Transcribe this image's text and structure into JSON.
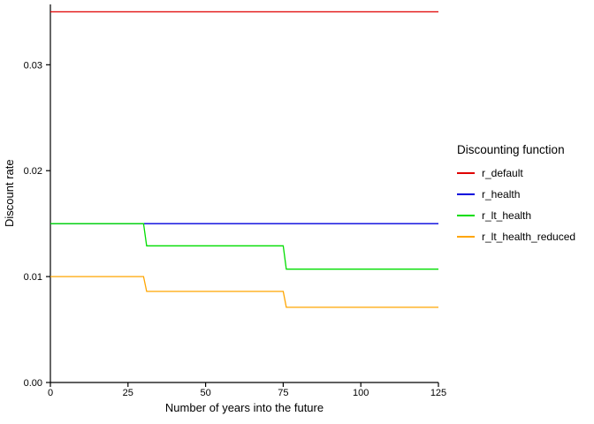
{
  "chart_data": {
    "type": "line",
    "subtype": "step",
    "title": "",
    "xlabel": "Number of years into the future",
    "ylabel": "Discount rate",
    "xlim": [
      0,
      125
    ],
    "ylim": [
      0,
      0.0357
    ],
    "x_ticks": [
      0,
      25,
      50,
      75,
      100,
      125
    ],
    "x_tick_labels": [
      "0",
      "25",
      "50",
      "75",
      "100",
      "125"
    ],
    "y_ticks": [
      0,
      0.01,
      0.02,
      0.03
    ],
    "y_tick_labels": [
      "0.00",
      "0.01",
      "0.02",
      "0.03"
    ],
    "grid": false,
    "legend_position": "right",
    "legend_title": "Discounting function",
    "axis_color": "#000000",
    "background_color": "#ffffff",
    "series": [
      {
        "name": "r_default",
        "color": "#e00000",
        "points": [
          [
            0,
            0.035
          ],
          [
            125,
            0.035
          ]
        ]
      },
      {
        "name": "r_health",
        "color": "#0000dd",
        "points": [
          [
            0,
            0.015
          ],
          [
            125,
            0.015
          ]
        ]
      },
      {
        "name": "r_lt_health",
        "color": "#00dd00",
        "points": [
          [
            0,
            0.015
          ],
          [
            30,
            0.015
          ],
          [
            31,
            0.0129
          ],
          [
            75,
            0.0129
          ],
          [
            76,
            0.0107
          ],
          [
            125,
            0.0107
          ]
        ]
      },
      {
        "name": "r_lt_health_reduced",
        "color": "#ffa500",
        "points": [
          [
            0,
            0.01
          ],
          [
            30,
            0.01
          ],
          [
            31,
            0.0086
          ],
          [
            75,
            0.0086
          ],
          [
            76,
            0.0071
          ],
          [
            125,
            0.0071
          ]
        ]
      }
    ]
  }
}
